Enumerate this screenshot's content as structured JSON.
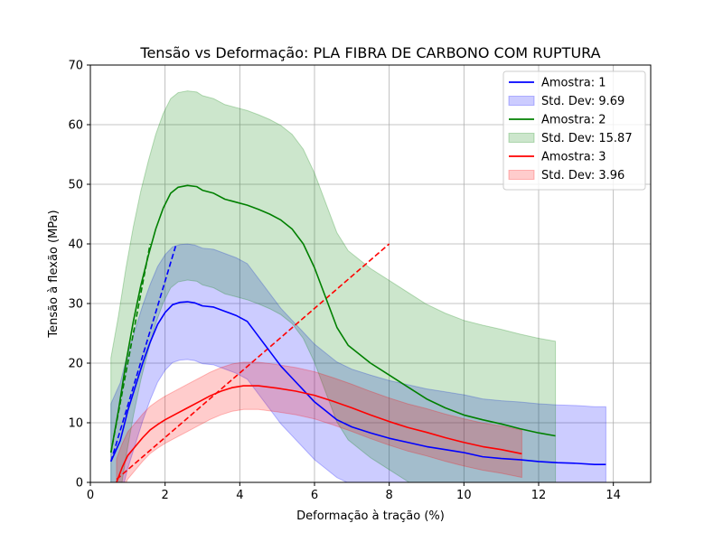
{
  "chart_data": {
    "type": "line",
    "title": "Tensão vs Deformação: PLA FIBRA DE CARBONO COM RUPTURA",
    "xlabel": "Deformação à tração (%)",
    "ylabel": "Tensão à flexão (MPa)",
    "xlim": [
      0,
      15
    ],
    "ylim": [
      0,
      70
    ],
    "xticks": [
      0,
      2,
      4,
      6,
      8,
      10,
      12,
      14
    ],
    "yticks": [
      0,
      10,
      20,
      30,
      40,
      50,
      60,
      70
    ],
    "grid": true,
    "legend_position": "top-right",
    "series": [
      {
        "name": "Amostra: 1",
        "color": "#0000ff",
        "std_label": "Std. Dev: 9.69",
        "std": 9.69,
        "points": [
          [
            0.55,
            3.5
          ],
          [
            0.8,
            7
          ],
          [
            1.0,
            12
          ],
          [
            1.2,
            16
          ],
          [
            1.4,
            20
          ],
          [
            1.6,
            23.5
          ],
          [
            1.8,
            26.5
          ],
          [
            2.0,
            28.5
          ],
          [
            2.2,
            29.8
          ],
          [
            2.4,
            30.2
          ],
          [
            2.6,
            30.3
          ],
          [
            2.8,
            30.1
          ],
          [
            3.0,
            29.6
          ],
          [
            3.3,
            29.4
          ],
          [
            3.6,
            28.7
          ],
          [
            3.9,
            28
          ],
          [
            4.2,
            27
          ],
          [
            4.5,
            24.5
          ],
          [
            4.8,
            22
          ],
          [
            5.1,
            19.5
          ],
          [
            5.4,
            17.5
          ],
          [
            5.7,
            15.5
          ],
          [
            6.0,
            13.5
          ],
          [
            6.3,
            12
          ],
          [
            6.6,
            10.5
          ],
          [
            7.0,
            9.3
          ],
          [
            7.5,
            8.3
          ],
          [
            8.0,
            7.4
          ],
          [
            8.5,
            6.7
          ],
          [
            9.0,
            6
          ],
          [
            9.5,
            5.5
          ],
          [
            10.0,
            5
          ],
          [
            10.5,
            4.3
          ],
          [
            11.0,
            4
          ],
          [
            11.5,
            3.8
          ],
          [
            12.0,
            3.5
          ],
          [
            12.5,
            3.3
          ],
          [
            13.0,
            3.2
          ],
          [
            13.5,
            3
          ],
          [
            13.8,
            3
          ]
        ],
        "fit_line": [
          [
            0.55,
            3.5
          ],
          [
            2.3,
            40
          ]
        ]
      },
      {
        "name": "Amostra: 2",
        "color": "#008000",
        "std_label": "Std. Dev: 15.87",
        "std": 15.87,
        "points": [
          [
            0.55,
            5
          ],
          [
            0.75,
            12
          ],
          [
            0.95,
            20
          ],
          [
            1.15,
            27
          ],
          [
            1.35,
            33
          ],
          [
            1.55,
            38
          ],
          [
            1.75,
            42.5
          ],
          [
            1.95,
            46
          ],
          [
            2.15,
            48.5
          ],
          [
            2.35,
            49.5
          ],
          [
            2.6,
            49.8
          ],
          [
            2.85,
            49.6
          ],
          [
            3.0,
            49
          ],
          [
            3.3,
            48.5
          ],
          [
            3.6,
            47.5
          ],
          [
            3.9,
            47
          ],
          [
            4.2,
            46.5
          ],
          [
            4.5,
            45.8
          ],
          [
            4.8,
            45
          ],
          [
            5.1,
            44
          ],
          [
            5.4,
            42.5
          ],
          [
            5.7,
            40
          ],
          [
            6.0,
            36
          ],
          [
            6.3,
            31
          ],
          [
            6.6,
            26
          ],
          [
            6.9,
            23
          ],
          [
            7.2,
            21.5
          ],
          [
            7.5,
            20
          ],
          [
            8.0,
            18
          ],
          [
            8.5,
            16
          ],
          [
            9.0,
            14
          ],
          [
            9.5,
            12.5
          ],
          [
            10.0,
            11.3
          ],
          [
            10.5,
            10.5
          ],
          [
            11.0,
            9.8
          ],
          [
            11.5,
            9
          ],
          [
            12.0,
            8.3
          ],
          [
            12.45,
            7.8
          ]
        ],
        "fit_line": [
          [
            0.55,
            5
          ],
          [
            1.6,
            40
          ]
        ]
      },
      {
        "name": "Amostra: 3",
        "color": "#ff0000",
        "std_label": "Std. Dev: 3.96",
        "std": 3.96,
        "points": [
          [
            0.7,
            0
          ],
          [
            0.85,
            2.5
          ],
          [
            1.0,
            4.5
          ],
          [
            1.2,
            6
          ],
          [
            1.4,
            7.5
          ],
          [
            1.6,
            8.8
          ],
          [
            1.8,
            9.7
          ],
          [
            2.0,
            10.5
          ],
          [
            2.3,
            11.5
          ],
          [
            2.6,
            12.5
          ],
          [
            2.9,
            13.5
          ],
          [
            3.2,
            14.5
          ],
          [
            3.5,
            15.3
          ],
          [
            3.8,
            15.9
          ],
          [
            4.1,
            16.2
          ],
          [
            4.5,
            16.2
          ],
          [
            5.0,
            15.8
          ],
          [
            5.5,
            15.3
          ],
          [
            6.0,
            14.6
          ],
          [
            6.5,
            13.6
          ],
          [
            7.0,
            12.5
          ],
          [
            7.5,
            11.3
          ],
          [
            8.0,
            10.2
          ],
          [
            8.5,
            9.2
          ],
          [
            9.0,
            8.4
          ],
          [
            9.5,
            7.5
          ],
          [
            10.0,
            6.7
          ],
          [
            10.5,
            6.0
          ],
          [
            11.0,
            5.5
          ],
          [
            11.55,
            4.8
          ]
        ],
        "fit_line": [
          [
            0.7,
            0.5
          ],
          [
            8.0,
            40
          ]
        ]
      }
    ],
    "legend": [
      "Amostra: 1",
      "Std. Dev: 9.69",
      "Amostra: 2",
      "Std. Dev: 15.87",
      "Amostra: 3",
      "Std. Dev: 3.96"
    ]
  }
}
